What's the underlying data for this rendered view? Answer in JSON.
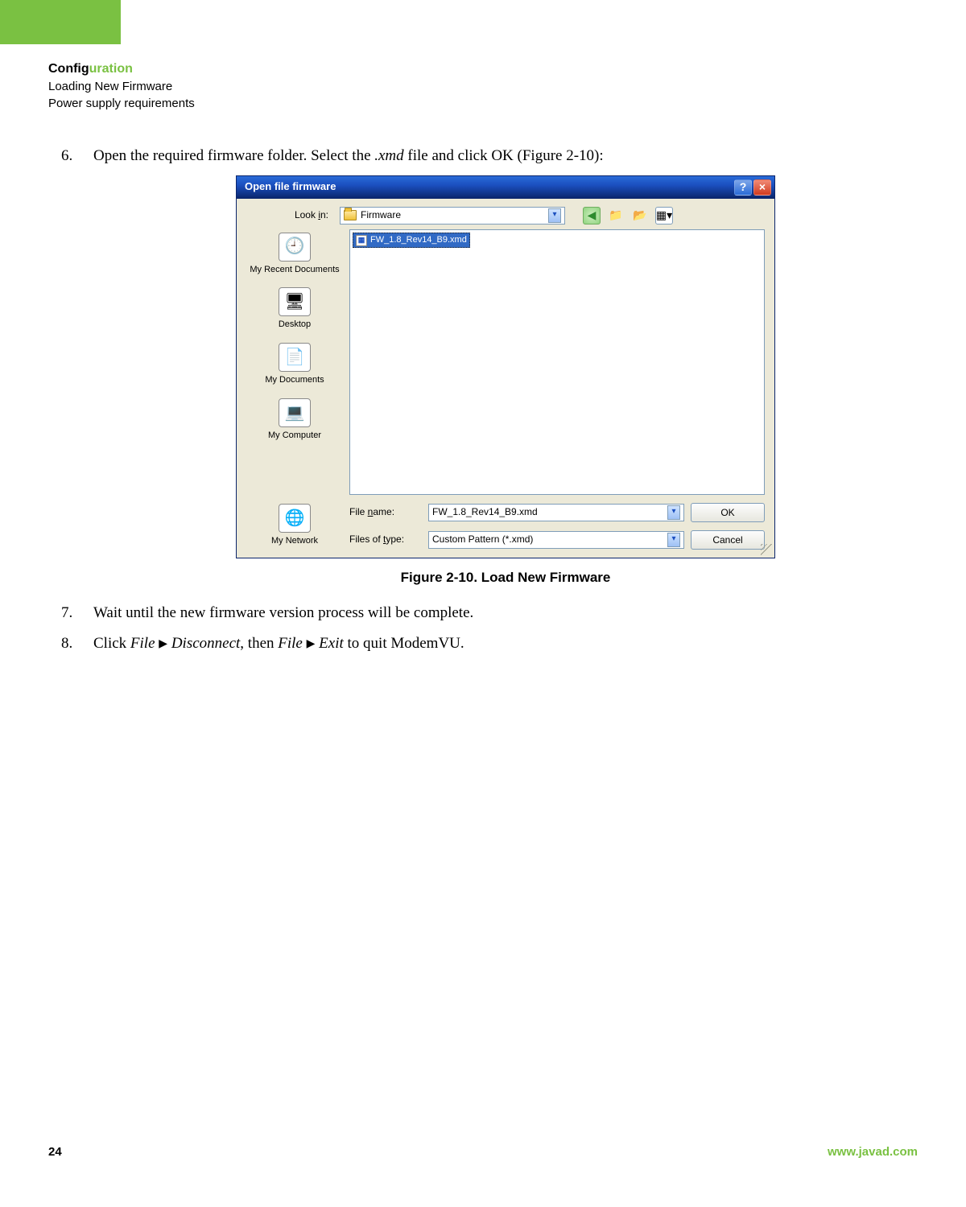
{
  "header": {
    "title_plain": "Config",
    "title_highlight": "uration",
    "line2": "Loading New Firmware",
    "line3": "Power supply requirements"
  },
  "steps": {
    "s6": {
      "num": "6.",
      "pre": "Open the required firmware folder. Select the ",
      "ital": ".xmd",
      "post": " file and click OK (Figure 2-10):"
    },
    "s7": {
      "num": "7.",
      "text": "Wait until the new firmware version process will be complete."
    },
    "s8": {
      "num": "8.",
      "pre": "Click ",
      "m1a": "File",
      "m1b": "Disconnect",
      "mid": ", then ",
      "m2a": "File",
      "m2b": "Exit",
      "post": " to quit ModemVU."
    }
  },
  "dialog": {
    "title": "Open file firmware",
    "lookin_label_pre": "Look ",
    "lookin_label_u": "i",
    "lookin_label_post": "n:",
    "lookin_value": "Firmware",
    "toolbar": {
      "back": "back-icon",
      "up": "up-one-level-icon",
      "newfolder": "new-folder-icon",
      "views": "views-icon"
    },
    "places": {
      "recent": "My Recent Documents",
      "desktop": "Desktop",
      "mydocs": "My Documents",
      "mycomp": "My Computer",
      "mynet": "My Network"
    },
    "file_selected": "FW_1.8_Rev14_B9.xmd",
    "filename_label_pre": "File ",
    "filename_label_u": "n",
    "filename_label_post": "ame:",
    "filename_value": "FW_1.8_Rev14_B9.xmd",
    "filetype_label_pre": "Files of ",
    "filetype_label_u": "t",
    "filetype_label_post": "ype:",
    "filetype_value": "Custom Pattern (*.xmd)",
    "ok": "OK",
    "cancel": "Cancel"
  },
  "figure_caption": "Figure 2-10. Load New Firmware",
  "footer": {
    "page": "24",
    "url": "www.javad.com"
  },
  "colors": {
    "accent_green": "#7ac142",
    "xp_blue": "#0a246a",
    "xp_face": "#ece9d8",
    "selection_blue": "#316ac5"
  }
}
